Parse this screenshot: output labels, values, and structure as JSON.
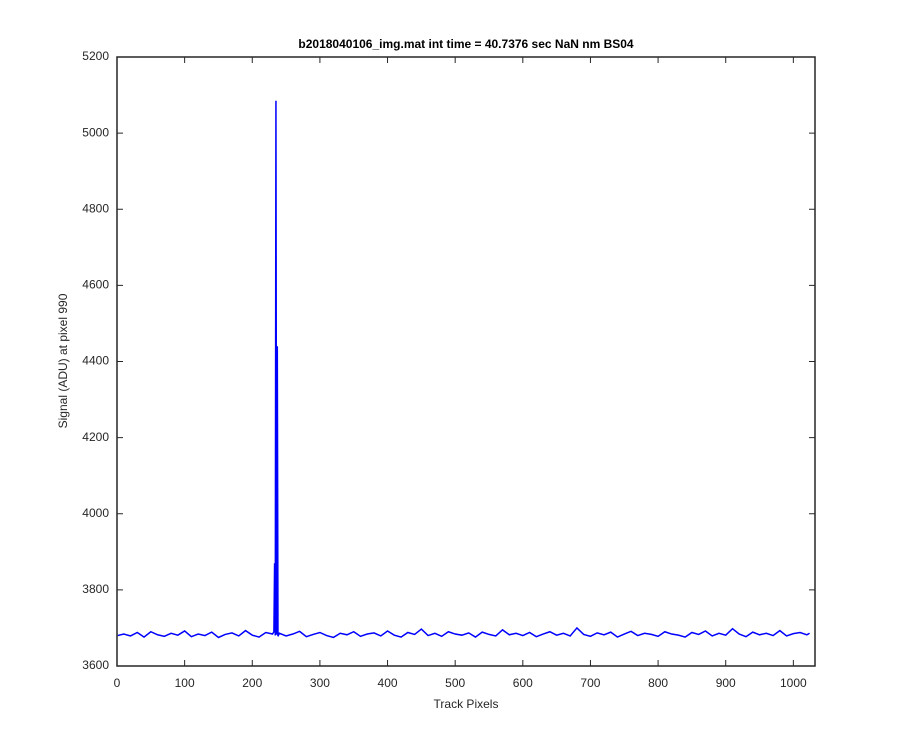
{
  "chart_data": {
    "type": "line",
    "title": "b2018040106_img.mat int time = 40.7376 sec  NaN nm BS04",
    "x_label": "Track Pixels",
    "y_label": "Signal (ADU) at pixel 990",
    "x": [
      1,
      10,
      20,
      30,
      40,
      50,
      60,
      70,
      80,
      90,
      100,
      110,
      120,
      130,
      140,
      150,
      160,
      170,
      180,
      190,
      200,
      210,
      220,
      230,
      232,
      233,
      234,
      235,
      236,
      237,
      238,
      240,
      250,
      260,
      270,
      280,
      290,
      300,
      310,
      320,
      330,
      340,
      350,
      360,
      370,
      380,
      390,
      400,
      410,
      420,
      430,
      440,
      450,
      460,
      470,
      480,
      490,
      500,
      510,
      520,
      530,
      540,
      550,
      560,
      570,
      580,
      590,
      600,
      610,
      620,
      630,
      640,
      650,
      660,
      670,
      680,
      690,
      700,
      710,
      720,
      730,
      740,
      750,
      760,
      770,
      780,
      790,
      800,
      810,
      820,
      830,
      840,
      850,
      860,
      870,
      880,
      890,
      900,
      910,
      920,
      930,
      940,
      950,
      960,
      970,
      980,
      990,
      1000,
      1010,
      1020,
      1024
    ],
    "series": [
      {
        "name": "signal",
        "color": "#0000ff",
        "values": [
          3680,
          3684,
          3679,
          3688,
          3676,
          3690,
          3682,
          3678,
          3686,
          3681,
          3692,
          3677,
          3684,
          3680,
          3689,
          3675,
          3683,
          3687,
          3679,
          3693,
          3681,
          3676,
          3688,
          3684,
          3690,
          3870,
          3680,
          5085,
          3682,
          4440,
          3678,
          3686,
          3679,
          3684,
          3691,
          3677,
          3683,
          3688,
          3680,
          3675,
          3686,
          3682,
          3690,
          3678,
          3684,
          3687,
          3679,
          3692,
          3681,
          3676,
          3688,
          3683,
          3697,
          3680,
          3686,
          3678,
          3690,
          3684,
          3681,
          3687,
          3676,
          3689,
          3683,
          3679,
          3695,
          3682,
          3686,
          3680,
          3688,
          3677,
          3684,
          3690,
          3681,
          3686,
          3679,
          3700,
          3683,
          3678,
          3687,
          3682,
          3689,
          3676,
          3684,
          3691,
          3680,
          3686,
          3683,
          3678,
          3690,
          3684,
          3681,
          3676,
          3688,
          3683,
          3692,
          3679,
          3686,
          3681,
          3698,
          3684,
          3677,
          3689,
          3682,
          3686,
          3680,
          3693,
          3679,
          3685,
          3688,
          3682,
          3686
        ]
      }
    ],
    "xlim": [
      0,
      1032
    ],
    "ylim": [
      3600,
      5200
    ],
    "xticks": [
      0,
      100,
      200,
      300,
      400,
      500,
      600,
      700,
      800,
      900,
      1000
    ],
    "yticks": [
      3600,
      3800,
      4000,
      4200,
      4400,
      4600,
      4800,
      5000,
      5200
    ],
    "grid": false
  }
}
